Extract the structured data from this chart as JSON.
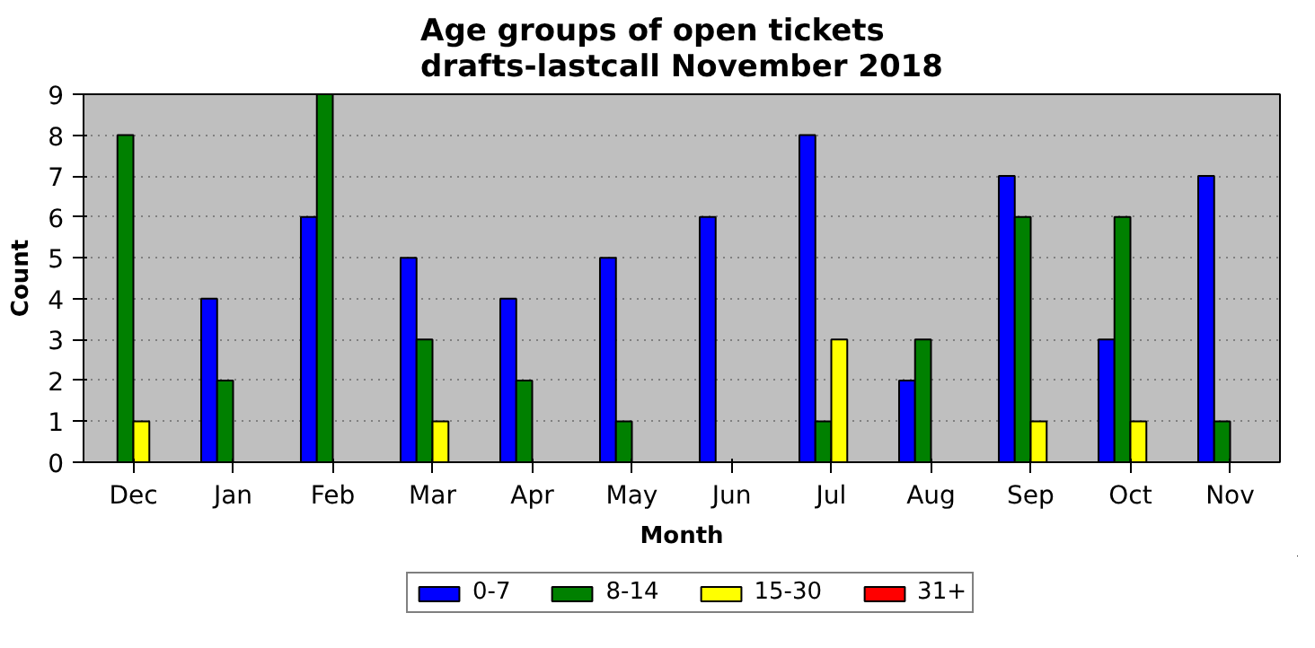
{
  "chart_data": {
    "type": "bar",
    "title": "Age groups of open tickets\ndrafts-lastcall November 2018",
    "xlabel": "Month",
    "ylabel": "Count",
    "categories": [
      "Dec",
      "Jan",
      "Feb",
      "Mar",
      "Apr",
      "May",
      "Jun",
      "Jul",
      "Aug",
      "Sep",
      "Oct",
      "Nov"
    ],
    "series": [
      {
        "name": "0-7",
        "color": "#0000ff",
        "values": [
          0,
          4,
          6,
          5,
          4,
          5,
          6,
          8,
          2,
          7,
          3,
          7
        ]
      },
      {
        "name": "8-14",
        "color": "#008000",
        "values": [
          8,
          2,
          9,
          3,
          2,
          1,
          0,
          1,
          3,
          6,
          6,
          1
        ]
      },
      {
        "name": "15-30",
        "color": "#ffff00",
        "values": [
          1,
          0,
          0,
          1,
          0,
          0,
          0,
          3,
          0,
          1,
          1,
          0
        ]
      },
      {
        "name": "31+",
        "color": "#ff0000",
        "values": [
          0,
          0,
          0,
          0,
          0,
          0,
          0,
          0,
          0,
          0,
          0,
          0
        ]
      }
    ],
    "ylim": [
      0,
      9
    ],
    "yticks": [
      0,
      1,
      2,
      3,
      4,
      5,
      6,
      7,
      8,
      9
    ],
    "grid": "y",
    "legend": "bottom"
  }
}
